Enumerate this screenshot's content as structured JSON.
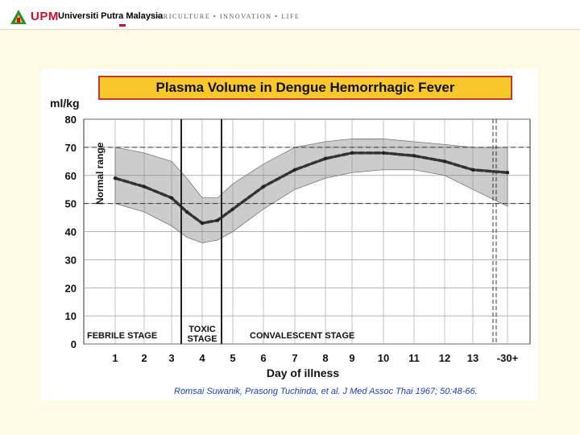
{
  "header": {
    "brand": "UPM",
    "university": "Universiti Putra Malaysia",
    "tagline": "AGRICULTURE • INNOVATION • LIFE",
    "colors": {
      "brand_red": "#c8102e",
      "logo_green": "#2e8b3a",
      "logo_yellow": "#f5c400"
    }
  },
  "slide": {
    "background": "#fdfbe3",
    "citation": "Romsai Suwanik, Prasong Tuchinda, et al. J Med Assoc Thai 1967; 50:48-66."
  },
  "chart_data": {
    "type": "line",
    "title": "Plasma Volume in Dengue Hemorrhagic Fever",
    "ylabel": "ml/kg",
    "xlabel": "Day of illness",
    "ylim": [
      0,
      80
    ],
    "yticks": [
      "0",
      "10",
      "20",
      "30",
      "40",
      "50",
      "60",
      "70",
      "80"
    ],
    "xticks": [
      "1",
      "2",
      "3",
      "4",
      "5",
      "6",
      "7",
      "8",
      "9",
      "10",
      "11",
      "12",
      "13",
      "-30+"
    ],
    "normal_range_label": "Normal range",
    "normal_range": [
      50,
      70
    ],
    "grid": true,
    "series": [
      {
        "x": [
          1,
          2,
          3,
          3.5,
          4,
          4.5,
          5,
          6,
          7,
          8,
          9,
          10,
          11,
          12,
          13,
          14
        ],
        "y": [
          59,
          56,
          52,
          47,
          43,
          44,
          48,
          56,
          62,
          66,
          68,
          68,
          67,
          65,
          62,
          61
        ]
      }
    ],
    "band_upper": [
      70,
      68,
      65,
      59,
      52,
      52,
      57,
      64,
      70,
      72,
      73,
      73,
      72,
      71,
      70,
      70
    ],
    "band_lower": [
      50,
      47,
      42,
      38,
      36,
      37,
      40,
      48,
      55,
      59,
      61,
      62,
      62,
      60,
      55,
      49
    ],
    "stages": [
      {
        "label": "FEBRILE STAGE",
        "line1": "FEBRILE  STAGE",
        "line2": ""
      },
      {
        "label": "TOXIC STAGE",
        "line1": "TOXIC",
        "line2": "STAGE"
      },
      {
        "label": "CONVALESCENT STAGE",
        "line1": "CONVALESCENT  STAGE",
        "line2": ""
      }
    ]
  }
}
